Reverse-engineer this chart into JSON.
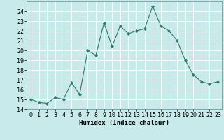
{
  "x": [
    0,
    1,
    2,
    3,
    4,
    5,
    6,
    7,
    8,
    9,
    10,
    11,
    12,
    13,
    14,
    15,
    16,
    17,
    18,
    19,
    20,
    21,
    22,
    23
  ],
  "y": [
    15.0,
    14.7,
    14.6,
    15.2,
    15.0,
    16.7,
    15.5,
    20.0,
    19.5,
    22.8,
    20.4,
    22.5,
    21.7,
    22.0,
    22.2,
    24.5,
    22.5,
    22.0,
    21.0,
    19.0,
    17.5,
    16.8,
    16.6,
    16.8
  ],
  "line_color": "#2d7a6e",
  "marker": "D",
  "marker_size": 2.0,
  "bg_color": "#c8eaea",
  "grid_color": "#ffffff",
  "xlabel": "Humidex (Indice chaleur)",
  "xlim": [
    -0.5,
    23.5
  ],
  "ylim": [
    14,
    25
  ],
  "yticks": [
    14,
    15,
    16,
    17,
    18,
    19,
    20,
    21,
    22,
    23,
    24
  ],
  "xticks": [
    0,
    1,
    2,
    3,
    4,
    5,
    6,
    7,
    8,
    9,
    10,
    11,
    12,
    13,
    14,
    15,
    16,
    17,
    18,
    19,
    20,
    21,
    22,
    23
  ],
  "xlabel_fontsize": 6.5,
  "tick_fontsize": 6.0
}
